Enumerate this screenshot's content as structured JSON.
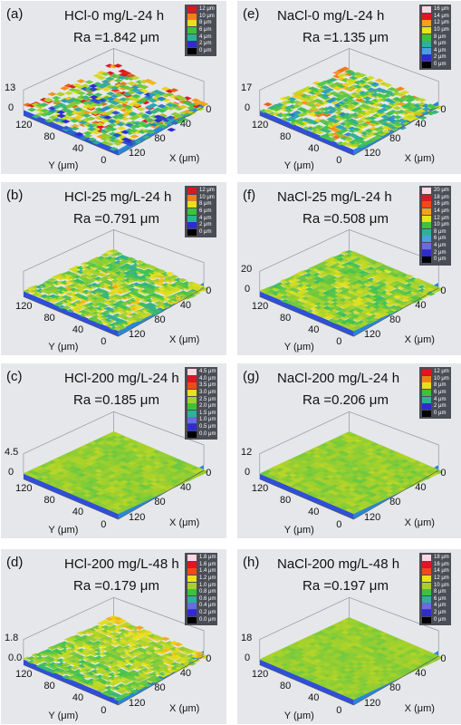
{
  "panels": [
    {
      "letter": "(a)",
      "title": "HCl-0 mg/L-24 h",
      "ra": "Ra =1.842 μm",
      "legend": [
        "12 μm",
        "10 μm",
        "8 μm",
        "6 μm",
        "4 μm",
        "2 μm",
        "0 μm"
      ],
      "z_tick": "13",
      "z_zero": "0",
      "y_ticks": [
        "120",
        "80",
        "40",
        "0"
      ],
      "x_ticks": [
        "120",
        "80",
        "40",
        "0"
      ],
      "y_label": "Y (μm)",
      "x_label": "X (μm)",
      "roughness": 1.0
    },
    {
      "letter": "(e)",
      "title": "NaCl-0 mg/L-24 h",
      "ra": "Ra =1.135 μm",
      "legend": [
        "16 μm",
        "14 μm",
        "12 μm",
        "10 μm",
        "8 μm",
        "6 μm",
        "4 μm",
        "2 μm",
        "0 μm"
      ],
      "z_tick": "17",
      "z_zero": "0",
      "y_ticks": [
        "120",
        "80",
        "40",
        "0"
      ],
      "x_ticks": [
        "120",
        "80",
        "40",
        "0"
      ],
      "y_label": "Y (μm)",
      "x_label": "X (μm)",
      "roughness": 0.7
    },
    {
      "letter": "(b)",
      "title": "HCl-25 mg/L-24 h",
      "ra": "Ra =0.791 μm",
      "legend": [
        "12 μm",
        "10 μm",
        "8 μm",
        "6 μm",
        "4 μm",
        "2 μm",
        "0 μm"
      ],
      "z_tick": "",
      "z_zero": "",
      "y_ticks": [
        "120",
        "80",
        "40",
        "0"
      ],
      "x_ticks": [
        "120",
        "80",
        "40",
        "0"
      ],
      "y_label": "Y (μm)",
      "x_label": "X (μm)",
      "roughness": 0.5
    },
    {
      "letter": "(f)",
      "title": "NaCl-25 mg/L-24 h",
      "ra": "Ra =0.508 μm",
      "legend": [
        "20 μm",
        "18 μm",
        "16 μm",
        "14 μm",
        "12 μm",
        "10 μm",
        "8 μm",
        "6 μm",
        "4 μm",
        "2 μm",
        "0 μm"
      ],
      "z_tick": "20",
      "z_zero": "0",
      "y_ticks": [
        "120",
        "80",
        "40",
        "0"
      ],
      "x_ticks": [
        "120",
        "80",
        "40",
        "0"
      ],
      "y_label": "Y (μm)",
      "x_label": "X (μm)",
      "roughness": 0.35
    },
    {
      "letter": "(c)",
      "title": "HCl-200 mg/L-24 h",
      "ra": "Ra =0.185 μm",
      "legend": [
        "4.5 μm",
        "4.0 μm",
        "3.5 μm",
        "3.0 μm",
        "2.5 μm",
        "2.0 μm",
        "1.5 μm",
        "1.0 μm",
        "0.5 μm",
        "0.0 μm"
      ],
      "z_tick": "4.5",
      "z_zero": "0",
      "y_ticks": [
        "120",
        "80",
        "40",
        "0"
      ],
      "x_ticks": [
        "120",
        "80",
        "40",
        "0"
      ],
      "y_label": "Y (μm)",
      "x_label": "X (μm)",
      "roughness": 0.15
    },
    {
      "letter": "(g)",
      "title": "NaCl-200 mg/L-24 h",
      "ra": "Ra =0.206 μm",
      "legend": [
        "12 μm",
        "10 μm",
        "8 μm",
        "6 μm",
        "4 μm",
        "2 μm",
        "0 μm"
      ],
      "z_tick": "12",
      "z_zero": "0",
      "y_ticks": [
        "120",
        "80",
        "40",
        "0"
      ],
      "x_ticks": [
        "120",
        "80",
        "40",
        "0"
      ],
      "y_label": "Y (μm)",
      "x_label": "X (μm)",
      "roughness": 0.15
    },
    {
      "letter": "(d)",
      "title": "HCl-200 mg/L-48 h",
      "ra": "Ra =0.179 μm",
      "legend": [
        "1.8 μm",
        "1.6 μm",
        "1.4 μm",
        "1.2 μm",
        "1.0 μm",
        "0.8 μm",
        "0.6 μm",
        "0.4 μm",
        "0.2 μm",
        "0.0 μm"
      ],
      "z_tick": "1.8",
      "z_zero": "0.0",
      "y_ticks": [
        "120",
        "80",
        "40",
        "0"
      ],
      "x_ticks": [
        "120",
        "80",
        "40",
        "0"
      ],
      "y_label": "Y (μm)",
      "x_label": "X (μm)",
      "roughness": 0.6
    },
    {
      "letter": "(h)",
      "title": "NaCl-200 mg/L-48 h",
      "ra": "Ra =0.197 μm",
      "legend": [
        "18 μm",
        "16 μm",
        "14 μm",
        "12 μm",
        "10 μm",
        "8 μm",
        "6 μm",
        "4 μm",
        "2 μm",
        "0 μm"
      ],
      "z_tick": "18",
      "z_zero": "0",
      "y_ticks": [
        "120",
        "80",
        "40",
        "0"
      ],
      "x_ticks": [
        "120",
        "80",
        "40",
        "0"
      ],
      "y_label": "Y (μm)",
      "x_label": "X (μm)",
      "roughness": 0.12
    }
  ]
}
